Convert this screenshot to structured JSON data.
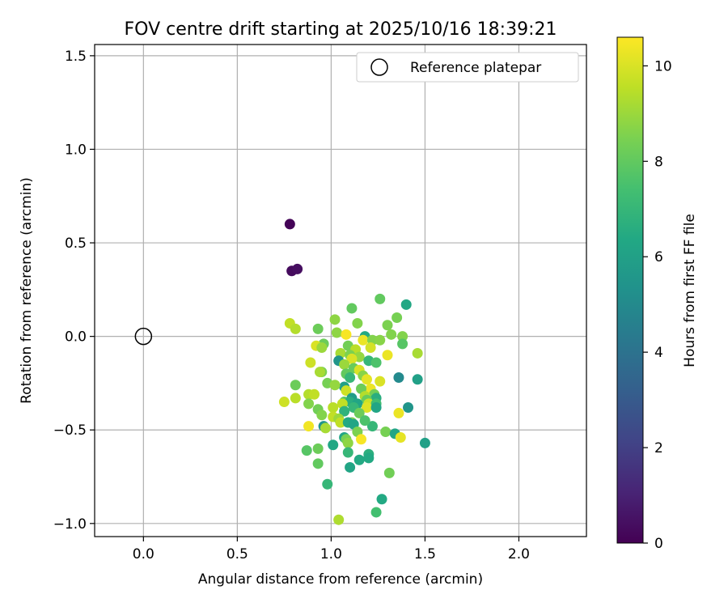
{
  "chart_data": {
    "type": "scatter",
    "title": "FOV centre drift starting at 2025/10/16 18:39:21",
    "xlabel": "Angular distance from reference (arcmin)",
    "ylabel": "Rotation from reference (arcmin)",
    "xlim": [
      -0.26,
      2.36
    ],
    "ylim": [
      -1.07,
      1.56
    ],
    "xticks": [
      0.0,
      0.5,
      1.0,
      1.5,
      2.0
    ],
    "xtick_labels": [
      "0.0",
      "0.5",
      "1.0",
      "1.5",
      "2.0"
    ],
    "yticks": [
      -1.0,
      -0.5,
      0.0,
      0.5,
      1.0,
      1.5
    ],
    "ytick_labels": [
      "−1.0",
      "−0.5",
      "0.0",
      "0.5",
      "1.0",
      "1.5"
    ],
    "grid": true,
    "legend": {
      "label": "Reference platepar",
      "position": "top-right"
    },
    "reference_point": {
      "x": 0.0,
      "y": 0.0
    },
    "colorbar": {
      "label": "Hours from first FF file",
      "range": [
        0,
        10.6
      ],
      "ticks": [
        0,
        2,
        4,
        6,
        8,
        10
      ],
      "tick_labels": [
        "0",
        "2",
        "4",
        "6",
        "8",
        "10"
      ]
    },
    "points": [
      {
        "x": 0.78,
        "y": 0.6,
        "h": 0.1
      },
      {
        "x": 0.79,
        "y": 0.35,
        "h": 0.3
      },
      {
        "x": 0.82,
        "y": 0.36,
        "h": 0.4
      },
      {
        "x": 1.26,
        "y": 0.2,
        "h": 8.0
      },
      {
        "x": 1.4,
        "y": 0.17,
        "h": 6.3
      },
      {
        "x": 1.11,
        "y": 0.15,
        "h": 8.0
      },
      {
        "x": 1.35,
        "y": 0.1,
        "h": 8.4
      },
      {
        "x": 1.02,
        "y": 0.09,
        "h": 8.8
      },
      {
        "x": 0.78,
        "y": 0.07,
        "h": 9.6
      },
      {
        "x": 1.14,
        "y": 0.07,
        "h": 8.6
      },
      {
        "x": 1.3,
        "y": 0.06,
        "h": 8.5
      },
      {
        "x": 0.81,
        "y": 0.04,
        "h": 9.4
      },
      {
        "x": 0.93,
        "y": 0.04,
        "h": 8.2
      },
      {
        "x": 1.03,
        "y": 0.02,
        "h": 8.8
      },
      {
        "x": 1.08,
        "y": 0.01,
        "h": 10.5
      },
      {
        "x": 1.18,
        "y": 0.0,
        "h": 6.4
      },
      {
        "x": 1.32,
        "y": 0.01,
        "h": 8.6
      },
      {
        "x": 1.38,
        "y": 0.0,
        "h": 8.6
      },
      {
        "x": 1.17,
        "y": -0.02,
        "h": 10.3
      },
      {
        "x": 1.22,
        "y": -0.02,
        "h": 8.6
      },
      {
        "x": 0.96,
        "y": -0.04,
        "h": 8.2
      },
      {
        "x": 0.92,
        "y": -0.05,
        "h": 10.0
      },
      {
        "x": 1.09,
        "y": -0.05,
        "h": 8.3
      },
      {
        "x": 1.38,
        "y": -0.04,
        "h": 7.8
      },
      {
        "x": 0.95,
        "y": -0.06,
        "h": 9.0
      },
      {
        "x": 1.13,
        "y": -0.07,
        "h": 9.5
      },
      {
        "x": 1.21,
        "y": -0.06,
        "h": 9.9
      },
      {
        "x": 1.05,
        "y": -0.09,
        "h": 9.2
      },
      {
        "x": 1.1,
        "y": -0.1,
        "h": 8.5
      },
      {
        "x": 1.3,
        "y": -0.1,
        "h": 10.3
      },
      {
        "x": 1.46,
        "y": -0.09,
        "h": 9.2
      },
      {
        "x": 1.15,
        "y": -0.11,
        "h": 8.9
      },
      {
        "x": 1.04,
        "y": -0.13,
        "h": 5.5
      },
      {
        "x": 1.11,
        "y": -0.12,
        "h": 10.0
      },
      {
        "x": 1.2,
        "y": -0.13,
        "h": 7.0
      },
      {
        "x": 1.24,
        "y": -0.14,
        "h": 7.6
      },
      {
        "x": 0.89,
        "y": -0.14,
        "h": 9.8
      },
      {
        "x": 1.07,
        "y": -0.15,
        "h": 9.0
      },
      {
        "x": 1.12,
        "y": -0.17,
        "h": 8.1
      },
      {
        "x": 0.95,
        "y": -0.19,
        "h": 8.5
      },
      {
        "x": 1.08,
        "y": -0.2,
        "h": 8.0
      },
      {
        "x": 1.15,
        "y": -0.18,
        "h": 10.0
      },
      {
        "x": 1.1,
        "y": -0.22,
        "h": 7.0
      },
      {
        "x": 1.17,
        "y": -0.21,
        "h": 8.7
      },
      {
        "x": 1.36,
        "y": -0.22,
        "h": 5.0
      },
      {
        "x": 1.46,
        "y": -0.23,
        "h": 6.0
      },
      {
        "x": 1.26,
        "y": -0.24,
        "h": 10.0
      },
      {
        "x": 0.94,
        "y": -0.19,
        "h": 9.2
      },
      {
        "x": 0.98,
        "y": -0.25,
        "h": 8.4
      },
      {
        "x": 1.19,
        "y": -0.23,
        "h": 10.2
      },
      {
        "x": 1.21,
        "y": -0.28,
        "h": 10.3
      },
      {
        "x": 0.81,
        "y": -0.26,
        "h": 8.2
      },
      {
        "x": 1.07,
        "y": -0.27,
        "h": 6.0
      },
      {
        "x": 1.16,
        "y": -0.28,
        "h": 8.2
      },
      {
        "x": 1.08,
        "y": -0.29,
        "h": 9.8
      },
      {
        "x": 1.23,
        "y": -0.31,
        "h": 8.3
      },
      {
        "x": 0.88,
        "y": -0.31,
        "h": 9.4
      },
      {
        "x": 0.91,
        "y": -0.31,
        "h": 9.6
      },
      {
        "x": 1.11,
        "y": -0.33,
        "h": 5.8
      },
      {
        "x": 1.18,
        "y": -0.32,
        "h": 9.4
      },
      {
        "x": 0.81,
        "y": -0.33,
        "h": 9.5
      },
      {
        "x": 1.24,
        "y": -0.33,
        "h": 6.6
      },
      {
        "x": 1.19,
        "y": -0.34,
        "h": 8.1
      },
      {
        "x": 0.75,
        "y": -0.35,
        "h": 9.8
      },
      {
        "x": 1.07,
        "y": -0.35,
        "h": 7.8
      },
      {
        "x": 1.1,
        "y": -0.35,
        "h": 6.6
      },
      {
        "x": 1.14,
        "y": -0.36,
        "h": 6.2
      },
      {
        "x": 1.2,
        "y": -0.36,
        "h": 9.8
      },
      {
        "x": 1.24,
        "y": -0.36,
        "h": 7.3
      },
      {
        "x": 0.88,
        "y": -0.36,
        "h": 8.6
      },
      {
        "x": 1.06,
        "y": -0.36,
        "h": 9.6
      },
      {
        "x": 1.12,
        "y": -0.38,
        "h": 7.0
      },
      {
        "x": 1.19,
        "y": -0.38,
        "h": 10.1
      },
      {
        "x": 1.24,
        "y": -0.38,
        "h": 6.2
      },
      {
        "x": 1.41,
        "y": -0.38,
        "h": 5.5
      },
      {
        "x": 1.01,
        "y": -0.38,
        "h": 9.5
      },
      {
        "x": 0.93,
        "y": -0.39,
        "h": 8.3
      },
      {
        "x": 1.07,
        "y": -0.4,
        "h": 6.8
      },
      {
        "x": 1.15,
        "y": -0.41,
        "h": 8.2
      },
      {
        "x": 1.36,
        "y": -0.41,
        "h": 10.3
      },
      {
        "x": 0.95,
        "y": -0.42,
        "h": 8.6
      },
      {
        "x": 1.01,
        "y": -0.43,
        "h": 9.6
      },
      {
        "x": 1.04,
        "y": -0.44,
        "h": 9.0
      },
      {
        "x": 1.05,
        "y": -0.46,
        "h": 9.6
      },
      {
        "x": 1.11,
        "y": -0.46,
        "h": 8.5
      },
      {
        "x": 1.09,
        "y": -0.46,
        "h": 6.4
      },
      {
        "x": 1.12,
        "y": -0.47,
        "h": 6.2
      },
      {
        "x": 0.88,
        "y": -0.48,
        "h": 10.4
      },
      {
        "x": 0.96,
        "y": -0.48,
        "h": 5.5
      },
      {
        "x": 1.22,
        "y": -0.48,
        "h": 7.0
      },
      {
        "x": 0.97,
        "y": -0.49,
        "h": 9.2
      },
      {
        "x": 1.14,
        "y": -0.51,
        "h": 8.5
      },
      {
        "x": 1.29,
        "y": -0.51,
        "h": 8.4
      },
      {
        "x": 1.34,
        "y": -0.52,
        "h": 6.2
      },
      {
        "x": 1.37,
        "y": -0.54,
        "h": 10.2
      },
      {
        "x": 1.07,
        "y": -0.54,
        "h": 6.2
      },
      {
        "x": 1.08,
        "y": -0.55,
        "h": 8.4
      },
      {
        "x": 1.16,
        "y": -0.55,
        "h": 10.5
      },
      {
        "x": 1.09,
        "y": -0.57,
        "h": 8.8
      },
      {
        "x": 1.5,
        "y": -0.57,
        "h": 6.0
      },
      {
        "x": 1.01,
        "y": -0.58,
        "h": 6.3
      },
      {
        "x": 0.93,
        "y": -0.6,
        "h": 8.2
      },
      {
        "x": 0.87,
        "y": -0.61,
        "h": 7.8
      },
      {
        "x": 1.09,
        "y": -0.62,
        "h": 7.0
      },
      {
        "x": 1.2,
        "y": -0.63,
        "h": 6.7
      },
      {
        "x": 1.2,
        "y": -0.65,
        "h": 6.4
      },
      {
        "x": 1.15,
        "y": -0.66,
        "h": 6.4
      },
      {
        "x": 0.93,
        "y": -0.68,
        "h": 8.0
      },
      {
        "x": 1.1,
        "y": -0.7,
        "h": 6.2
      },
      {
        "x": 1.31,
        "y": -0.73,
        "h": 8.3
      },
      {
        "x": 0.98,
        "y": -0.79,
        "h": 7.0
      },
      {
        "x": 1.27,
        "y": -0.87,
        "h": 6.4
      },
      {
        "x": 1.24,
        "y": -0.94,
        "h": 7.4
      },
      {
        "x": 1.04,
        "y": -0.98,
        "h": 9.3
      },
      {
        "x": 1.18,
        "y": -0.45,
        "h": 7.6
      },
      {
        "x": 1.02,
        "y": -0.26,
        "h": 8.9
      },
      {
        "x": 1.26,
        "y": -0.02,
        "h": 8.7
      }
    ]
  }
}
